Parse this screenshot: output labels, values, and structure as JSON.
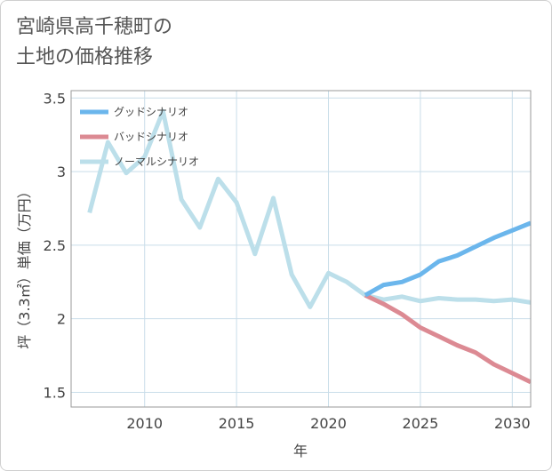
{
  "title_lines": [
    "宮崎県高千穂町の",
    "土地の価格推移"
  ],
  "colors": {
    "good": "#6bb6ec",
    "bad": "#dc8a93",
    "normal": "#bcdfea",
    "grid": "#c9dde9",
    "axis": "#9a9a9a"
  },
  "chart_data": {
    "type": "line",
    "title": "宮崎県高千穂町の土地の価格推移",
    "xlabel": "年",
    "ylabel": "坪（3.3㎡）単価（万円）",
    "xlim": [
      2006,
      2031
    ],
    "ylim": [
      1.4,
      3.55
    ],
    "xticks": [
      2010,
      2015,
      2020,
      2025,
      2030
    ],
    "yticks": [
      1.5,
      2,
      2.5,
      3,
      3.5
    ],
    "ytick_labels": [
      "1.5",
      "2",
      "2.5",
      "3",
      "3.5"
    ],
    "legend_position": "top-left",
    "series": [
      {
        "name": "グッドシナリオ",
        "key": "good",
        "x": [
          2022,
          2023,
          2024,
          2025,
          2026,
          2027,
          2028,
          2029,
          2030,
          2031
        ],
        "y": [
          2.16,
          2.23,
          2.25,
          2.3,
          2.39,
          2.43,
          2.49,
          2.55,
          2.6,
          2.65
        ]
      },
      {
        "name": "バッドシナリオ",
        "key": "bad",
        "x": [
          2022,
          2023,
          2024,
          2025,
          2026,
          2027,
          2028,
          2029,
          2030,
          2031
        ],
        "y": [
          2.16,
          2.1,
          2.03,
          1.94,
          1.88,
          1.82,
          1.77,
          1.69,
          1.63,
          1.57
        ]
      },
      {
        "name": "ノーマルシナリオ",
        "key": "normal",
        "x": [
          2007,
          2008,
          2009,
          2010,
          2011,
          2012,
          2013,
          2014,
          2015,
          2016,
          2017,
          2018,
          2019,
          2020,
          2021,
          2022,
          2023,
          2024,
          2025,
          2026,
          2027,
          2028,
          2029,
          2030,
          2031
        ],
        "y": [
          2.72,
          3.2,
          2.99,
          3.1,
          3.41,
          2.81,
          2.62,
          2.95,
          2.79,
          2.44,
          2.82,
          2.3,
          2.08,
          2.31,
          2.25,
          2.16,
          2.13,
          2.15,
          2.12,
          2.14,
          2.13,
          2.13,
          2.12,
          2.13,
          2.11
        ]
      }
    ]
  }
}
